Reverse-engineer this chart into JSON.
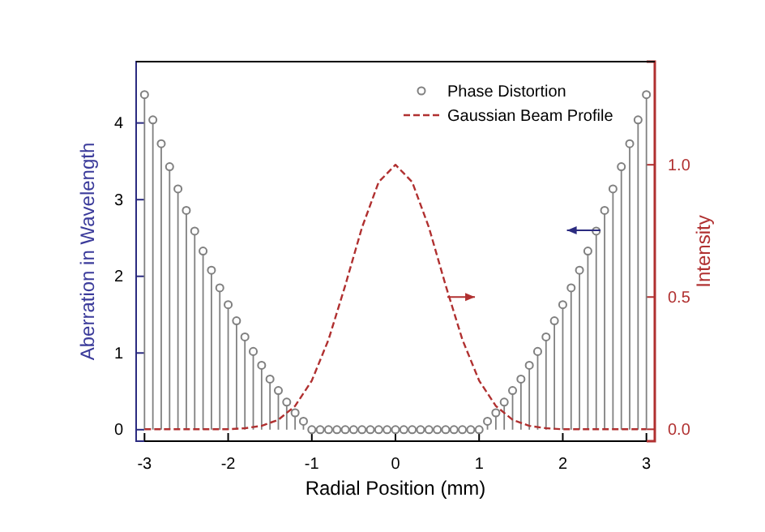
{
  "chart_data": {
    "type": "lollipop",
    "xlabel": "Radial Position (mm)",
    "ylabel": "Aberration in Wavelength",
    "y2label": "Intensity",
    "xlim": [
      -3.1,
      3.1
    ],
    "xticks": [
      -3,
      -2,
      -1,
      0,
      1,
      2,
      3
    ],
    "ylim": [
      -0.15,
      4.8
    ],
    "yticks": [
      0,
      1,
      2,
      3,
      4
    ],
    "y2lim": [
      -0.045,
      1.39
    ],
    "y2ticks": [
      {
        "value": 0,
        "label": "0.0"
      },
      {
        "value": 0.5,
        "label": "0.5"
      },
      {
        "value": 1,
        "label": "1.0"
      }
    ],
    "legend": "top right",
    "series": [
      {
        "name": "Phase Distortion",
        "marker": "circle",
        "color": "#808080",
        "x": [
          -3,
          -2.9,
          -2.8,
          -2.7,
          -2.6,
          -2.5,
          -2.4,
          -2.3,
          -2.2,
          -2.1,
          -2,
          -1.9,
          -1.8,
          -1.7,
          -1.6,
          -1.5,
          -1.4,
          -1.3,
          -1.2,
          -1.1,
          -1,
          -0.9,
          -0.8,
          -0.7,
          -0.6,
          -0.5,
          -0.4,
          -0.3,
          -0.2,
          -0.1,
          0,
          0.1,
          0.2,
          0.3,
          0.4,
          0.5,
          0.6,
          0.7,
          0.8,
          0.9,
          1,
          1.1,
          1.2,
          1.3,
          1.4,
          1.5,
          1.6,
          1.7,
          1.8,
          1.9,
          2,
          2.1,
          2.2,
          2.3,
          2.4,
          2.5,
          2.6,
          2.7,
          2.8,
          2.9,
          3
        ],
        "values": [
          4.37,
          4.04,
          3.73,
          3.43,
          3.14,
          2.86,
          2.59,
          2.33,
          2.08,
          1.85,
          1.63,
          1.42,
          1.21,
          1.02,
          0.84,
          0.66,
          0.51,
          0.36,
          0.22,
          0.11,
          0,
          0,
          0,
          0,
          0,
          0,
          0,
          0,
          0,
          0,
          0,
          0,
          0,
          0,
          0,
          0,
          0,
          0,
          0,
          0,
          0,
          0.11,
          0.22,
          0.36,
          0.51,
          0.66,
          0.84,
          1.02,
          1.21,
          1.42,
          1.63,
          1.85,
          2.08,
          2.33,
          2.59,
          2.86,
          3.14,
          3.43,
          3.73,
          4.04,
          4.37
        ]
      },
      {
        "name": "Gaussian Beam Profile",
        "type": "line",
        "axis": "y2",
        "line_style": "dashed",
        "marker": "none",
        "color": "#b03030",
        "x": [
          -3,
          -2,
          -1.8,
          -1.6,
          -1.4,
          -1.2,
          -1,
          -0.8,
          -0.6,
          -0.4,
          -0.2,
          0,
          0.2,
          0.4,
          0.6,
          0.8,
          1,
          1.2,
          1.4,
          1.6,
          1.8,
          2,
          3
        ],
        "values": [
          0,
          0,
          0.004,
          0.013,
          0.036,
          0.088,
          0.184,
          0.339,
          0.544,
          0.763,
          0.935,
          1,
          0.935,
          0.763,
          0.544,
          0.339,
          0.184,
          0.088,
          0.036,
          0.013,
          0.004,
          0,
          0
        ]
      }
    ]
  }
}
